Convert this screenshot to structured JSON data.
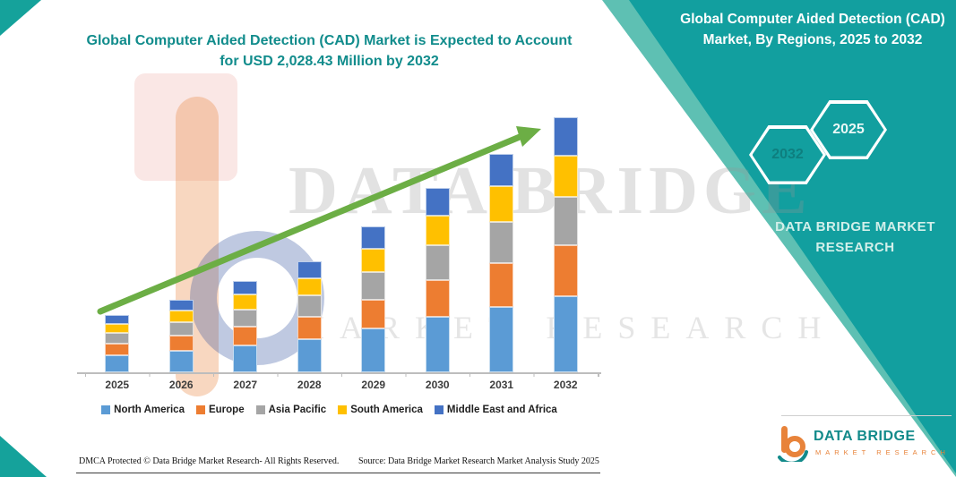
{
  "left_title": "Global Computer Aided Detection (CAD) Market is Expected to Account for USD 2,028.43 Million by 2032",
  "watermark": {
    "line1": "DATA BRIDGE",
    "line2": "MARKET RESEARCH"
  },
  "panel": {
    "title": "Global Computer Aided Detection (CAD) Market, By Regions, 2025 to 2032",
    "hexagons": [
      {
        "label": "2032"
      },
      {
        "label": "2025"
      }
    ],
    "brand": "DATA BRIDGE MARKET RESEARCH",
    "color": "#129F9F"
  },
  "chart_data": {
    "type": "bar",
    "subtype": "stacked",
    "unit": "USD Million",
    "categories": [
      "2025",
      "2026",
      "2027",
      "2028",
      "2029",
      "2030",
      "2031",
      "2032"
    ],
    "series": [
      {
        "name": "North America",
        "color": "#5B9BD5",
        "values": [
          137,
          174,
          217,
          265,
          348,
          439,
          521,
          608
        ]
      },
      {
        "name": "Europe",
        "color": "#ED7D31",
        "values": [
          91,
          116,
          145,
          177,
          232,
          293,
          348,
          406
        ]
      },
      {
        "name": "Asia Pacific",
        "color": "#A5A5A5",
        "values": [
          86,
          110,
          138,
          168,
          220,
          278,
          330,
          385
        ]
      },
      {
        "name": "South America",
        "color": "#FFC000",
        "values": [
          73,
          93,
          116,
          141,
          185,
          234,
          278,
          325
        ]
      },
      {
        "name": "Middle East and Africa",
        "color": "#4472C4",
        "values": [
          68,
          87,
          108,
          133,
          174,
          219,
          261,
          304.43
        ]
      }
    ],
    "totals_estimated": [
      455,
      580,
      724,
      884,
      1159,
      1463,
      1738,
      2028.43
    ],
    "annotation": "2032 total = USD 2,028.43 Million",
    "trend_arrow": true,
    "trend_arrow_color": "#6CAE45",
    "legend_position": "bottom",
    "gridlines": false,
    "y_axis_labels": false
  },
  "footer": {
    "dmca": "DMCA Protected © Data Bridge Market Research-  All Rights Reserved.",
    "source": "Source: Data Bridge Market Research  Market Analysis Study 2025"
  },
  "logo": {
    "name": "DATA BRIDGE",
    "subtitle": "MARKET RESEARCH"
  }
}
